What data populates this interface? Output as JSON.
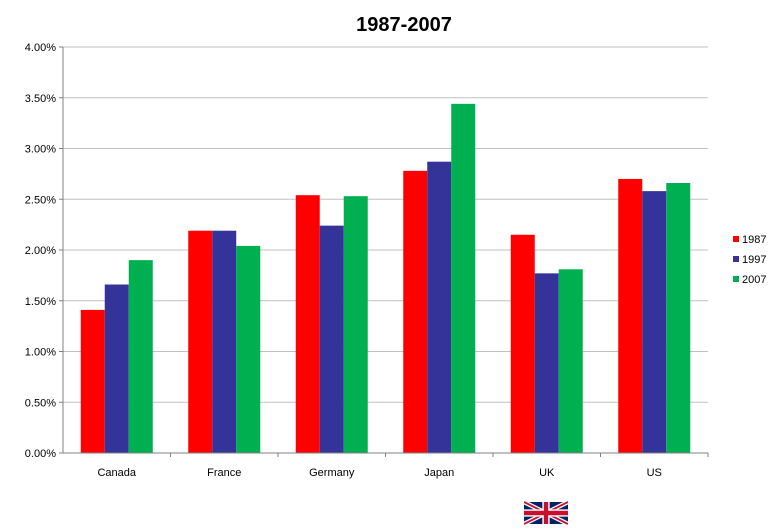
{
  "chart_data": {
    "type": "bar",
    "title": "1987-2007",
    "xlabel": "",
    "ylabel": "",
    "categories": [
      "Canada",
      "France",
      "Germany",
      "Japan",
      "UK",
      "US"
    ],
    "series": [
      {
        "name": "1987",
        "color": "#ff0000",
        "values": [
          1.41,
          2.19,
          2.54,
          2.78,
          2.15,
          2.7
        ]
      },
      {
        "name": "1997",
        "color": "#333399",
        "values": [
          1.66,
          2.19,
          2.24,
          2.87,
          1.77,
          2.58
        ]
      },
      {
        "name": "2007",
        "color": "#00b050",
        "values": [
          1.9,
          2.04,
          2.53,
          3.44,
          1.81,
          2.66
        ]
      }
    ],
    "ylim": [
      0,
      4
    ],
    "yticks": [
      "0.00%",
      "0.50%",
      "1.00%",
      "1.50%",
      "2.00%",
      "2.50%",
      "3.00%",
      "3.50%",
      "4.00%"
    ],
    "ytick_step": 0.5,
    "grid": true,
    "legend_position": "right",
    "flag_icon": "uk-flag-icon"
  }
}
